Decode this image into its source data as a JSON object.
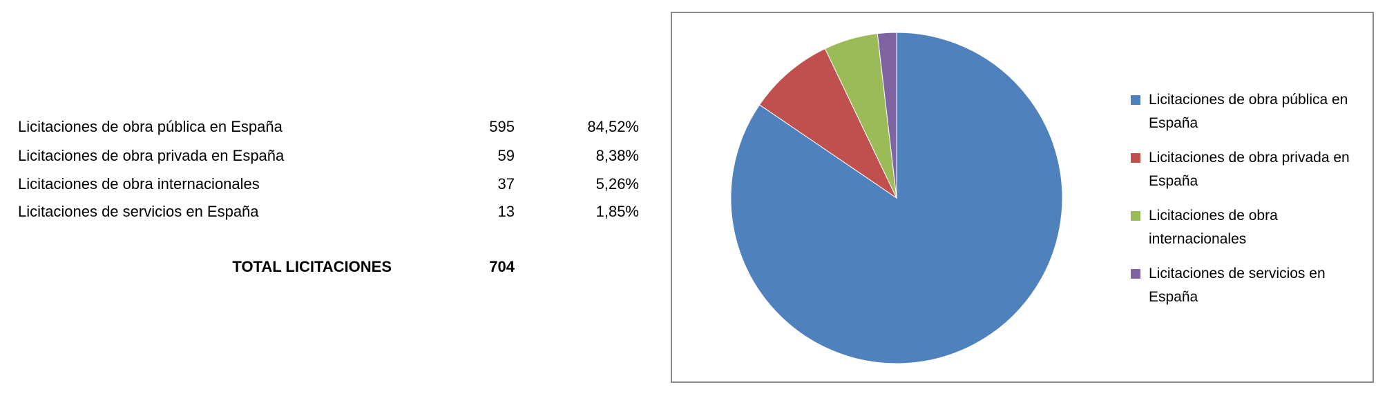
{
  "table": {
    "rows": [
      [
        "Licitaciones de obra pública en España",
        595,
        "84,52%"
      ],
      [
        "Licitaciones de obra privada en España",
        59,
        "8,38%"
      ],
      [
        "Licitaciones de obra internacionales",
        37,
        "5,26%"
      ],
      [
        "Licitaciones de servicios en España",
        13,
        "1,85%"
      ]
    ],
    "total": {
      "label": "TOTAL LICITACIONES",
      "value": 704
    }
  },
  "chart_data": {
    "type": "pie",
    "categories": [
      "Licitaciones de obra pública en España",
      "Licitaciones de obra privada en España",
      "Licitaciones de obra internacionales",
      "Licitaciones de servicios en España"
    ],
    "values": [
      595,
      59,
      37,
      13
    ],
    "colors": [
      "#4f81bd",
      "#c0504d",
      "#9bbb59",
      "#8064a2"
    ],
    "legend": "right"
  }
}
